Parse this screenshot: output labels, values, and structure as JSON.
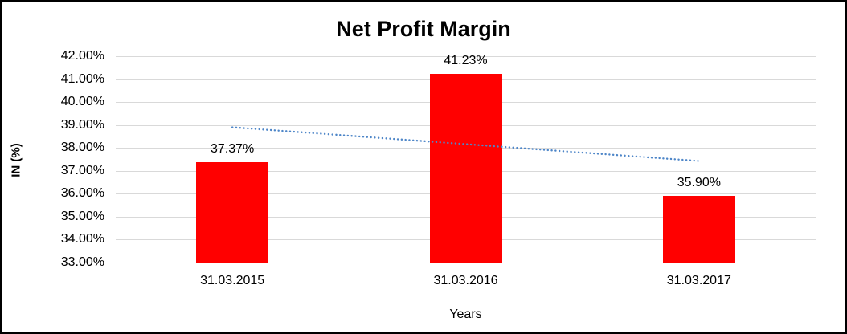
{
  "chart_data": {
    "type": "bar",
    "title": "Net Profit Margin",
    "categories": [
      "31.03.2015",
      "31.03.2016",
      "31.03.2017"
    ],
    "values": [
      37.37,
      41.23,
      35.9
    ],
    "data_labels": [
      "37.37%",
      "41.23%",
      "35.90%"
    ],
    "xlabel": "Years",
    "ylabel": "IN (%)",
    "ylim": [
      33,
      42
    ],
    "ytick_step": 1,
    "ytick_labels": [
      "42.00%",
      "41.00%",
      "40.00%",
      "39.00%",
      "38.00%",
      "37.00%",
      "36.00%",
      "35.00%",
      "34.00%",
      "33.00%"
    ],
    "grid": true,
    "legend": "none",
    "bar_color": "#FF0000",
    "gridline_color": "#D9D9D9",
    "text_color": "#000000",
    "background_color": "#FFFFFF",
    "frame_border_color": "#000000",
    "trendline": {
      "type": "linear",
      "style": "dotted",
      "color": "#4E86C8",
      "start_value": 38.9,
      "end_value": 37.43
    }
  }
}
